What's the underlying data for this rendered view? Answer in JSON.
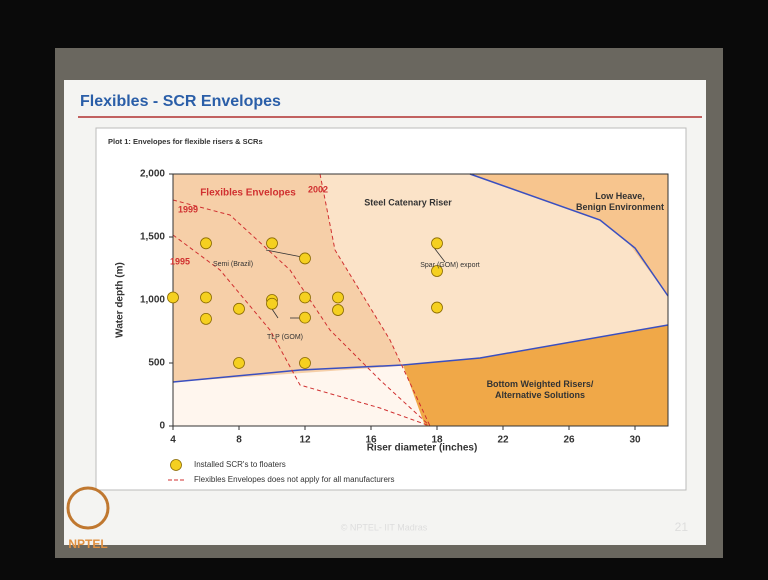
{
  "slide": {
    "title": "Flexibles - SCR Envelopes",
    "footer": "© NPTEL- IIT Madras",
    "page_number": "21",
    "logo": "NPTEL"
  },
  "chart_data": {
    "type": "scatter",
    "title": "Plot 1: Envelopes for flexible risers & SCRs",
    "x_label": "Riser diameter (inches)",
    "y_label": "Water depth (m)",
    "xlim": [
      4,
      32
    ],
    "xticks": [
      4,
      8,
      12,
      16,
      18,
      22,
      26,
      30
    ],
    "ylim": [
      0,
      2000
    ],
    "yticks": [
      0,
      500,
      {
        "value": 1000,
        "label": "1,000"
      },
      {
        "value": 1500,
        "label": "1,500"
      },
      {
        "value": 2000,
        "label": "2,000"
      }
    ],
    "series": [
      {
        "name": "Installed SCR's to floaters",
        "color": "#f5d020",
        "x": [
          4,
          6,
          6,
          6,
          8,
          8,
          10,
          10,
          10,
          12,
          12,
          12,
          12,
          14,
          14,
          18,
          18,
          18
        ],
        "values": [
          1020,
          1450,
          1020,
          850,
          930,
          500,
          1450,
          1000,
          970,
          1330,
          1020,
          860,
          500,
          1020,
          920,
          1450,
          1230,
          940
        ]
      }
    ],
    "envelope_note": "Flexibles Envelopes does not apply for all manufacturers",
    "annotations": [
      "Flexibles Envelopes",
      "1999",
      "1995",
      "2002",
      "Steel Catenary Riser",
      "Low Heave, Benign Environment",
      "Semi (Brazil)",
      "TLP (GOM)",
      "Spar (GOM) export",
      "Bottom Weighted Risers/ Alternative Solutions"
    ]
  }
}
